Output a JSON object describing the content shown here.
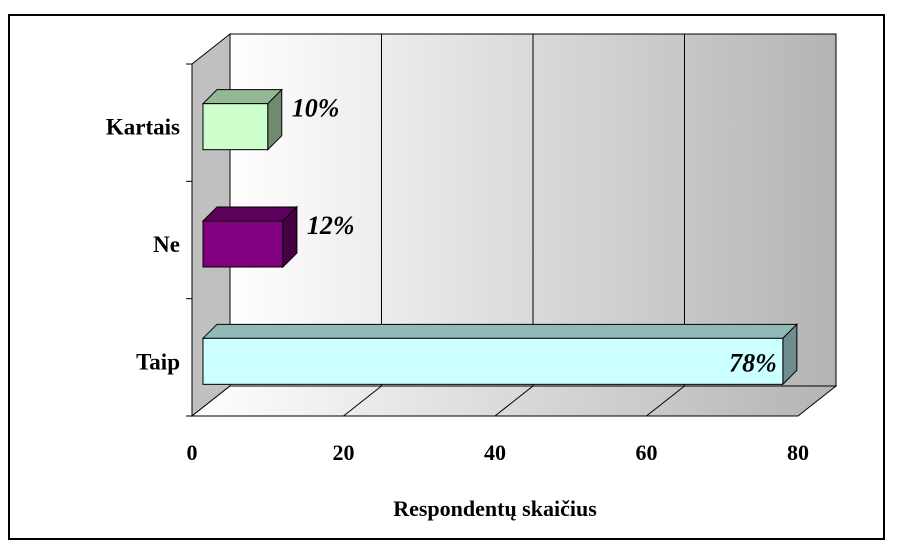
{
  "chart_data": {
    "type": "bar",
    "orientation": "horizontal",
    "style": "3d",
    "categories": [
      "Kartais",
      "Ne",
      "Taip"
    ],
    "values": [
      10,
      12,
      78
    ],
    "value_labels": [
      "10%",
      "12%",
      "78%"
    ],
    "bar_colors": [
      "#ccffcc",
      "#800080",
      "#ccffff"
    ],
    "title": "",
    "xlabel": "Respondentų skaičius",
    "ylabel": "",
    "xlim": [
      0,
      80
    ],
    "xticks": [
      0,
      20,
      40,
      60,
      80
    ],
    "grid": true,
    "legend": "none"
  }
}
